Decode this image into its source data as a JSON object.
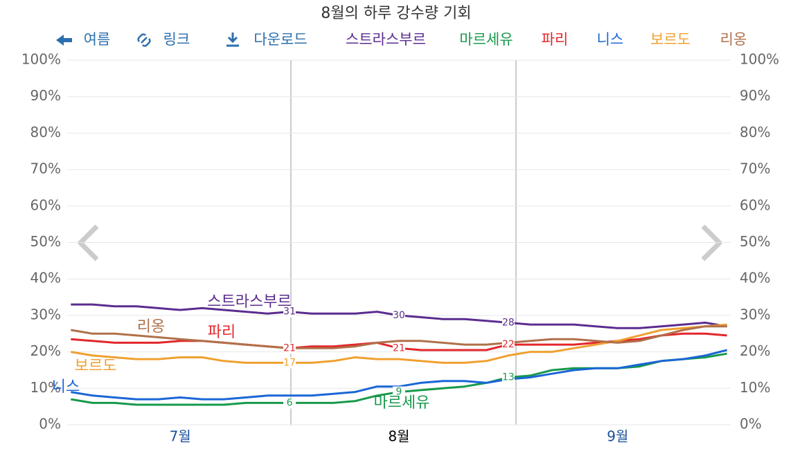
{
  "chart_data": {
    "type": "line",
    "title": "8월의 하루 강수량 기회",
    "toolbar": [
      "여름",
      "링크",
      "다운로드"
    ],
    "categories": [
      null,
      null,
      null,
      null,
      null,
      "7월",
      null,
      null,
      null,
      null,
      null,
      null,
      null,
      null,
      null,
      "8월",
      null,
      null,
      null,
      null,
      null,
      null,
      null,
      null,
      null,
      "9월",
      null,
      null,
      null,
      null,
      null
    ],
    "ylim": [
      0,
      100
    ],
    "yticks": [
      {
        "value": 0,
        "label": "0%"
      },
      {
        "value": 10,
        "label": "10%"
      },
      {
        "value": 20,
        "label": "20%"
      },
      {
        "value": 30,
        "label": "30%"
      },
      {
        "value": 40,
        "label": "40%"
      },
      {
        "value": 50,
        "label": "50%"
      },
      {
        "value": 60,
        "label": "60%"
      },
      {
        "value": 70,
        "label": "70%"
      },
      {
        "value": 80,
        "label": "80%"
      },
      {
        "value": 90,
        "label": "90%"
      },
      {
        "value": 100,
        "label": "100%"
      }
    ],
    "grid": true,
    "series": [
      {
        "name": "스트라스부르",
        "color": "#5b2c8f",
        "values": [
          33,
          33,
          32.5,
          32.5,
          32,
          31.5,
          32,
          31.5,
          31,
          30.5,
          31,
          30.5,
          30.5,
          30.5,
          31,
          30,
          29.5,
          29,
          29,
          28.5,
          28,
          27.5,
          27.5,
          27.5,
          27,
          26.5,
          26.5,
          27,
          27.5,
          28,
          27
        ],
        "value_labels": [
          null,
          null,
          null,
          null,
          null,
          null,
          null,
          null,
          null,
          null,
          "31",
          null,
          null,
          null,
          null,
          "30",
          null,
          null,
          null,
          null,
          "28",
          null,
          null,
          null,
          null,
          null,
          null,
          null,
          null,
          null,
          null
        ]
      },
      {
        "name": "마르세유",
        "color": "#17994b",
        "values": [
          7,
          6,
          6,
          5.5,
          5.5,
          5.5,
          5.5,
          5.5,
          6,
          6,
          6,
          6,
          6,
          6.5,
          8,
          9,
          9.5,
          10,
          10.5,
          11.5,
          13,
          13.5,
          15,
          15.5,
          15.5,
          15.5,
          16,
          17.5,
          18,
          18.5,
          19.5
        ],
        "value_labels": [
          null,
          null,
          null,
          null,
          null,
          null,
          null,
          null,
          null,
          null,
          "6",
          null,
          null,
          null,
          null,
          "9",
          null,
          null,
          null,
          null,
          "13",
          null,
          null,
          null,
          null,
          null,
          null,
          null,
          null,
          null,
          null
        ]
      },
      {
        "name": "파리",
        "color": "#e3262b",
        "values": [
          23.5,
          23,
          22.5,
          22.5,
          22.5,
          23,
          23,
          22.5,
          22,
          21.5,
          21,
          21.5,
          21.5,
          22,
          22.5,
          21,
          20.5,
          20.5,
          20.5,
          20.5,
          22,
          22,
          22,
          22,
          22.5,
          23,
          23.5,
          24.5,
          25,
          25,
          24.5
        ],
        "value_labels": [
          null,
          null,
          null,
          null,
          null,
          null,
          null,
          null,
          null,
          null,
          "21",
          null,
          null,
          null,
          null,
          "21",
          null,
          null,
          null,
          null,
          "22",
          null,
          null,
          null,
          null,
          null,
          null,
          null,
          null,
          null,
          null
        ]
      },
      {
        "name": "니스",
        "color": "#1a66d6",
        "values": [
          9,
          8,
          7.5,
          7,
          7,
          7.5,
          7,
          7,
          7.5,
          8,
          8,
          8,
          8.5,
          9,
          10.5,
          10.5,
          11.5,
          12,
          12,
          11.5,
          12.5,
          13,
          14,
          15,
          15.5,
          15.5,
          16.5,
          17.5,
          18,
          19,
          20.5
        ]
      },
      {
        "name": "보르도",
        "color": "#f0a030",
        "values": [
          20,
          19,
          18.5,
          18,
          18,
          18.5,
          18.5,
          17.5,
          17,
          17,
          17,
          17,
          17.5,
          18.5,
          18,
          18,
          17.5,
          17,
          17,
          17.5,
          19,
          20,
          20,
          21,
          22,
          23,
          24.5,
          26,
          26.5,
          27,
          27.5
        ],
        "value_labels": [
          null,
          null,
          null,
          null,
          null,
          null,
          null,
          null,
          null,
          null,
          "17",
          null,
          null,
          null,
          null,
          null,
          null,
          null,
          null,
          null,
          null,
          null,
          null,
          null,
          null,
          null,
          null,
          null,
          null,
          null,
          null
        ]
      },
      {
        "name": "리옹",
        "color": "#b0704a",
        "values": [
          26,
          25,
          25,
          24.5,
          24,
          23.5,
          23,
          22.5,
          22,
          21.5,
          21,
          21,
          21,
          21.5,
          22.5,
          23,
          23,
          22.5,
          22,
          22,
          22.5,
          23,
          23.5,
          23.5,
          23,
          22.5,
          23,
          24.5,
          26,
          27,
          27
        ]
      }
    ]
  }
}
